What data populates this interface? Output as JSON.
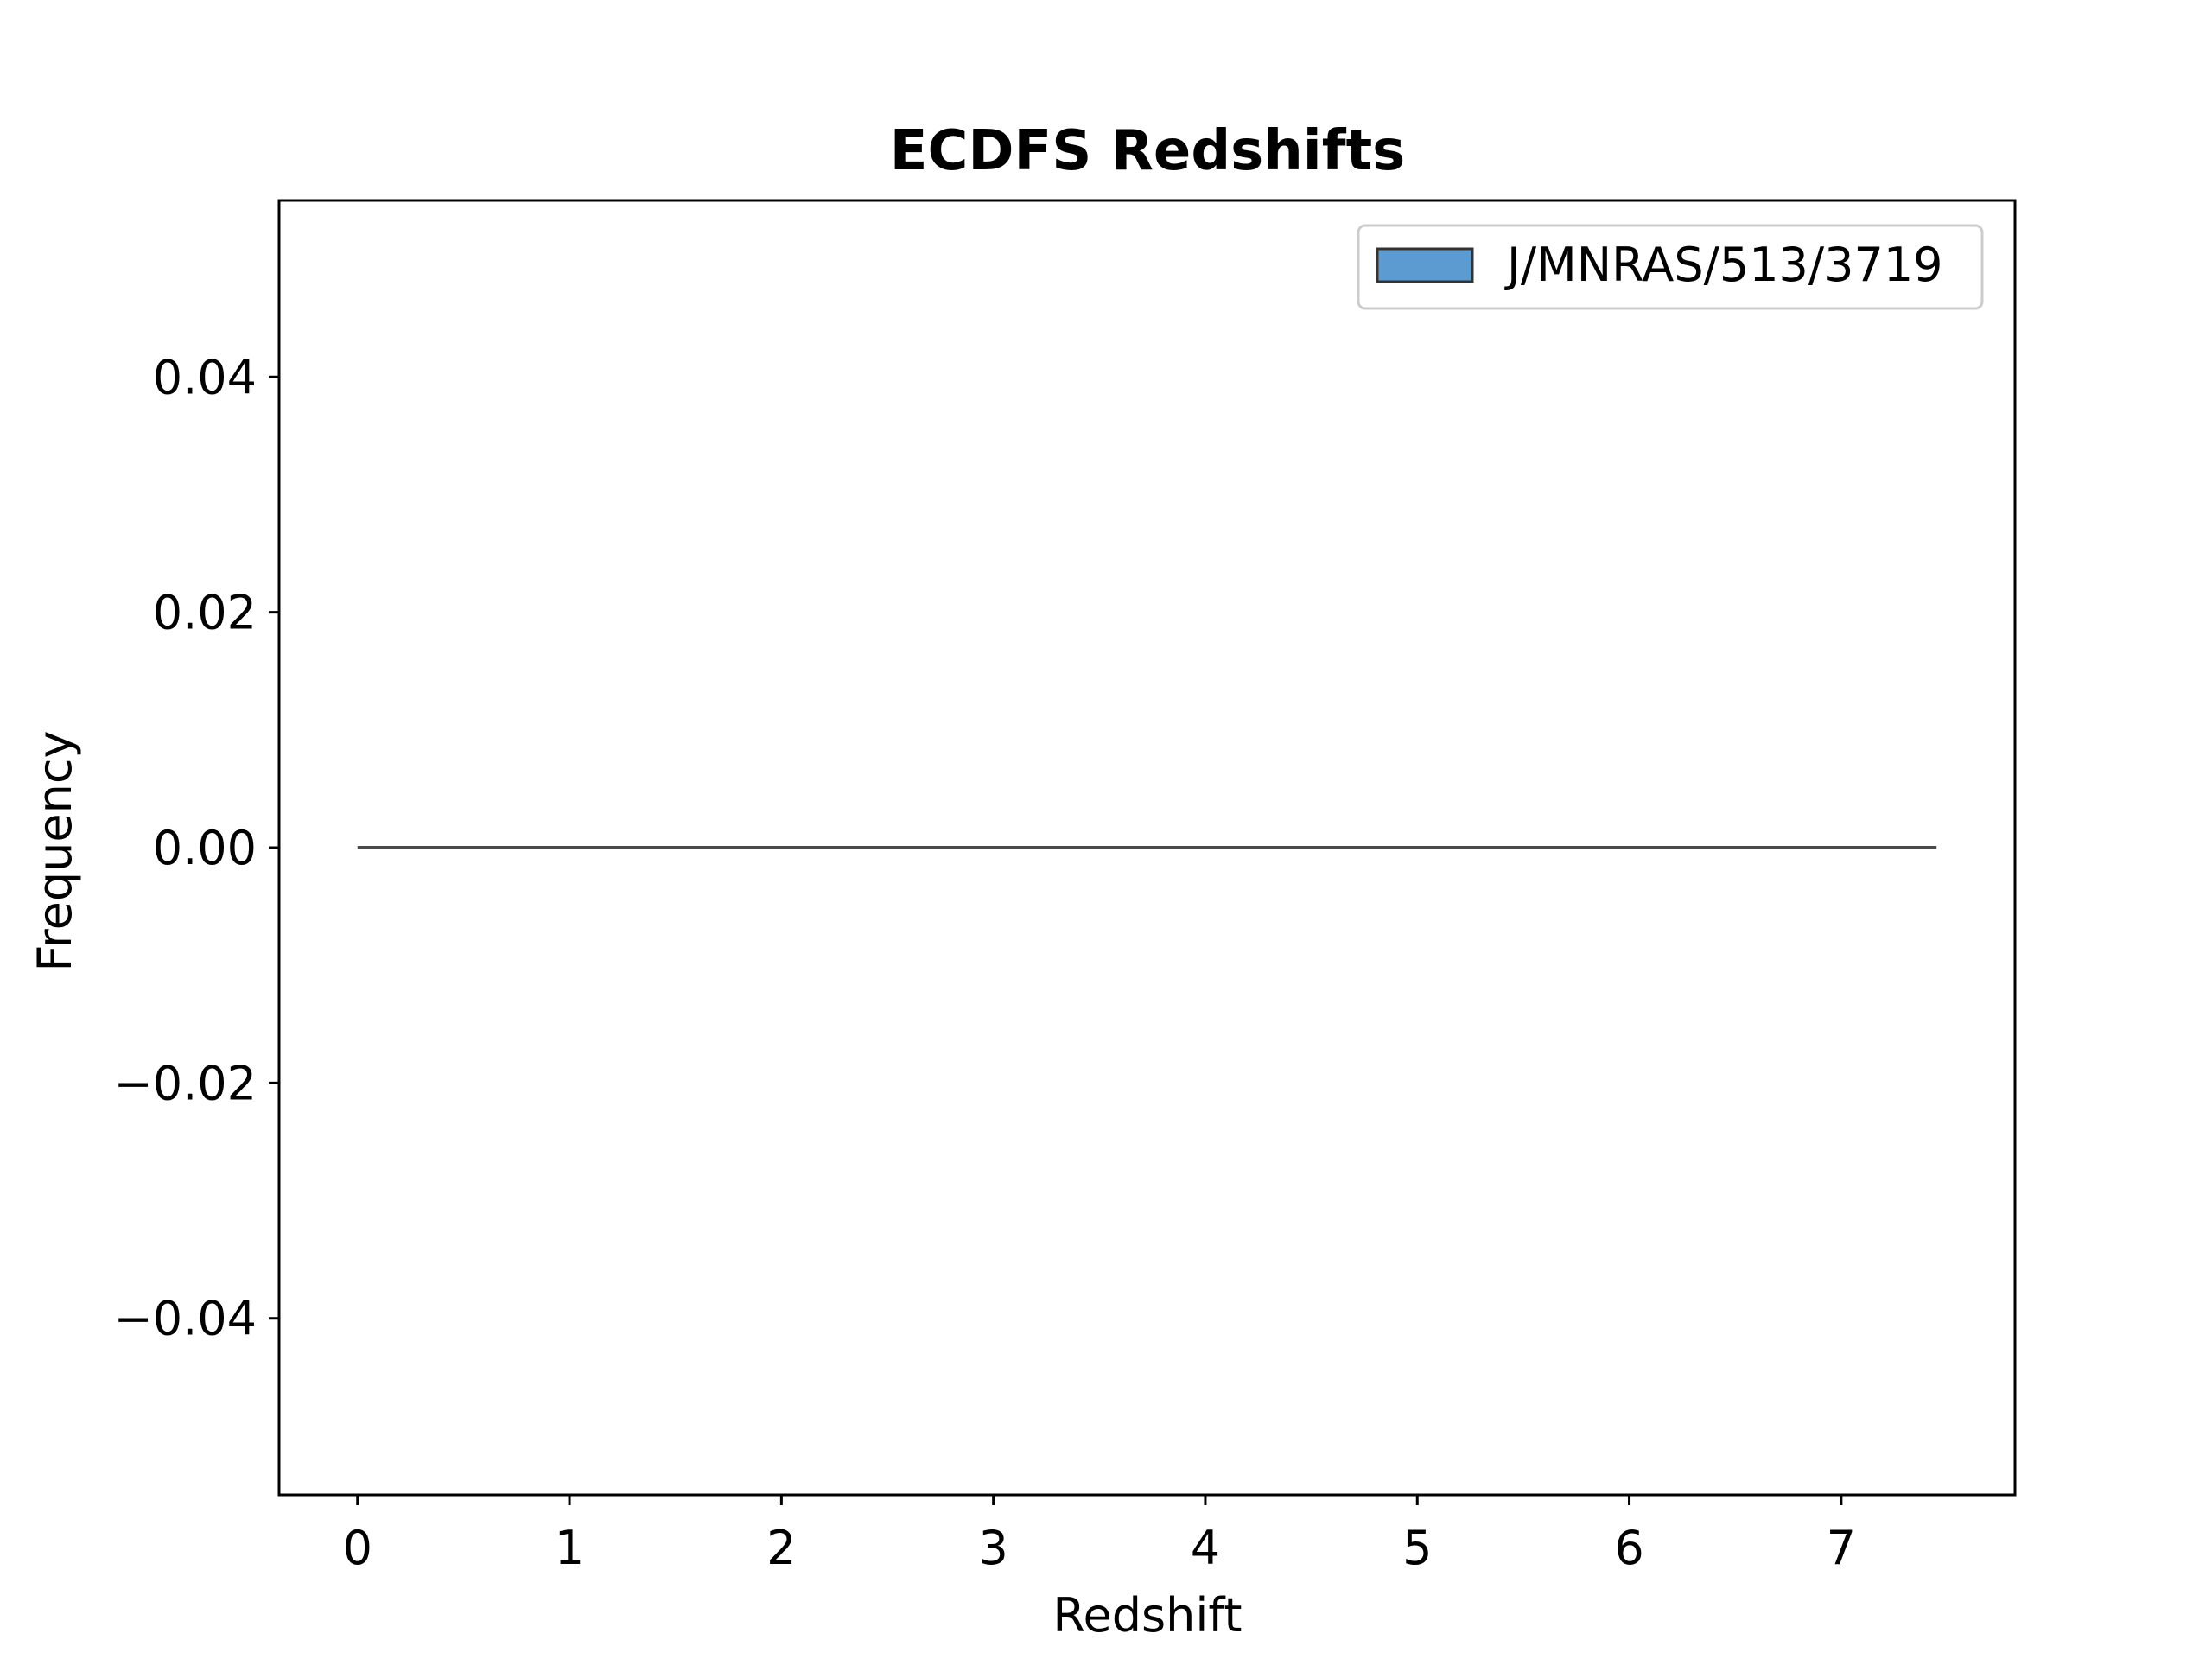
{
  "chart_data": {
    "type": "bar",
    "title": "ECDFS Redshifts",
    "xlabel": "Redshift",
    "ylabel": "Frequency",
    "xlim": [
      -0.37,
      7.82
    ],
    "ylim": [
      -0.055,
      0.055
    ],
    "x_ticks": [
      0,
      1,
      2,
      3,
      4,
      5,
      6,
      7
    ],
    "x_tick_labels": [
      "0",
      "1",
      "2",
      "3",
      "4",
      "5",
      "6",
      "7"
    ],
    "y_ticks": [
      0.04,
      0.02,
      0.0,
      -0.02,
      -0.04
    ],
    "y_tick_labels": [
      "0.04",
      "0.02",
      "0.00",
      "−0.02",
      "−0.04"
    ],
    "grid": false,
    "legend_position": "top-right",
    "series": [
      {
        "name": "J/MNRAS/513/3719",
        "x_start": 0.0,
        "x_end": 7.45,
        "values": [
          0.0
        ],
        "color": "#5b9bd1",
        "edge_color": "#333333"
      }
    ]
  }
}
